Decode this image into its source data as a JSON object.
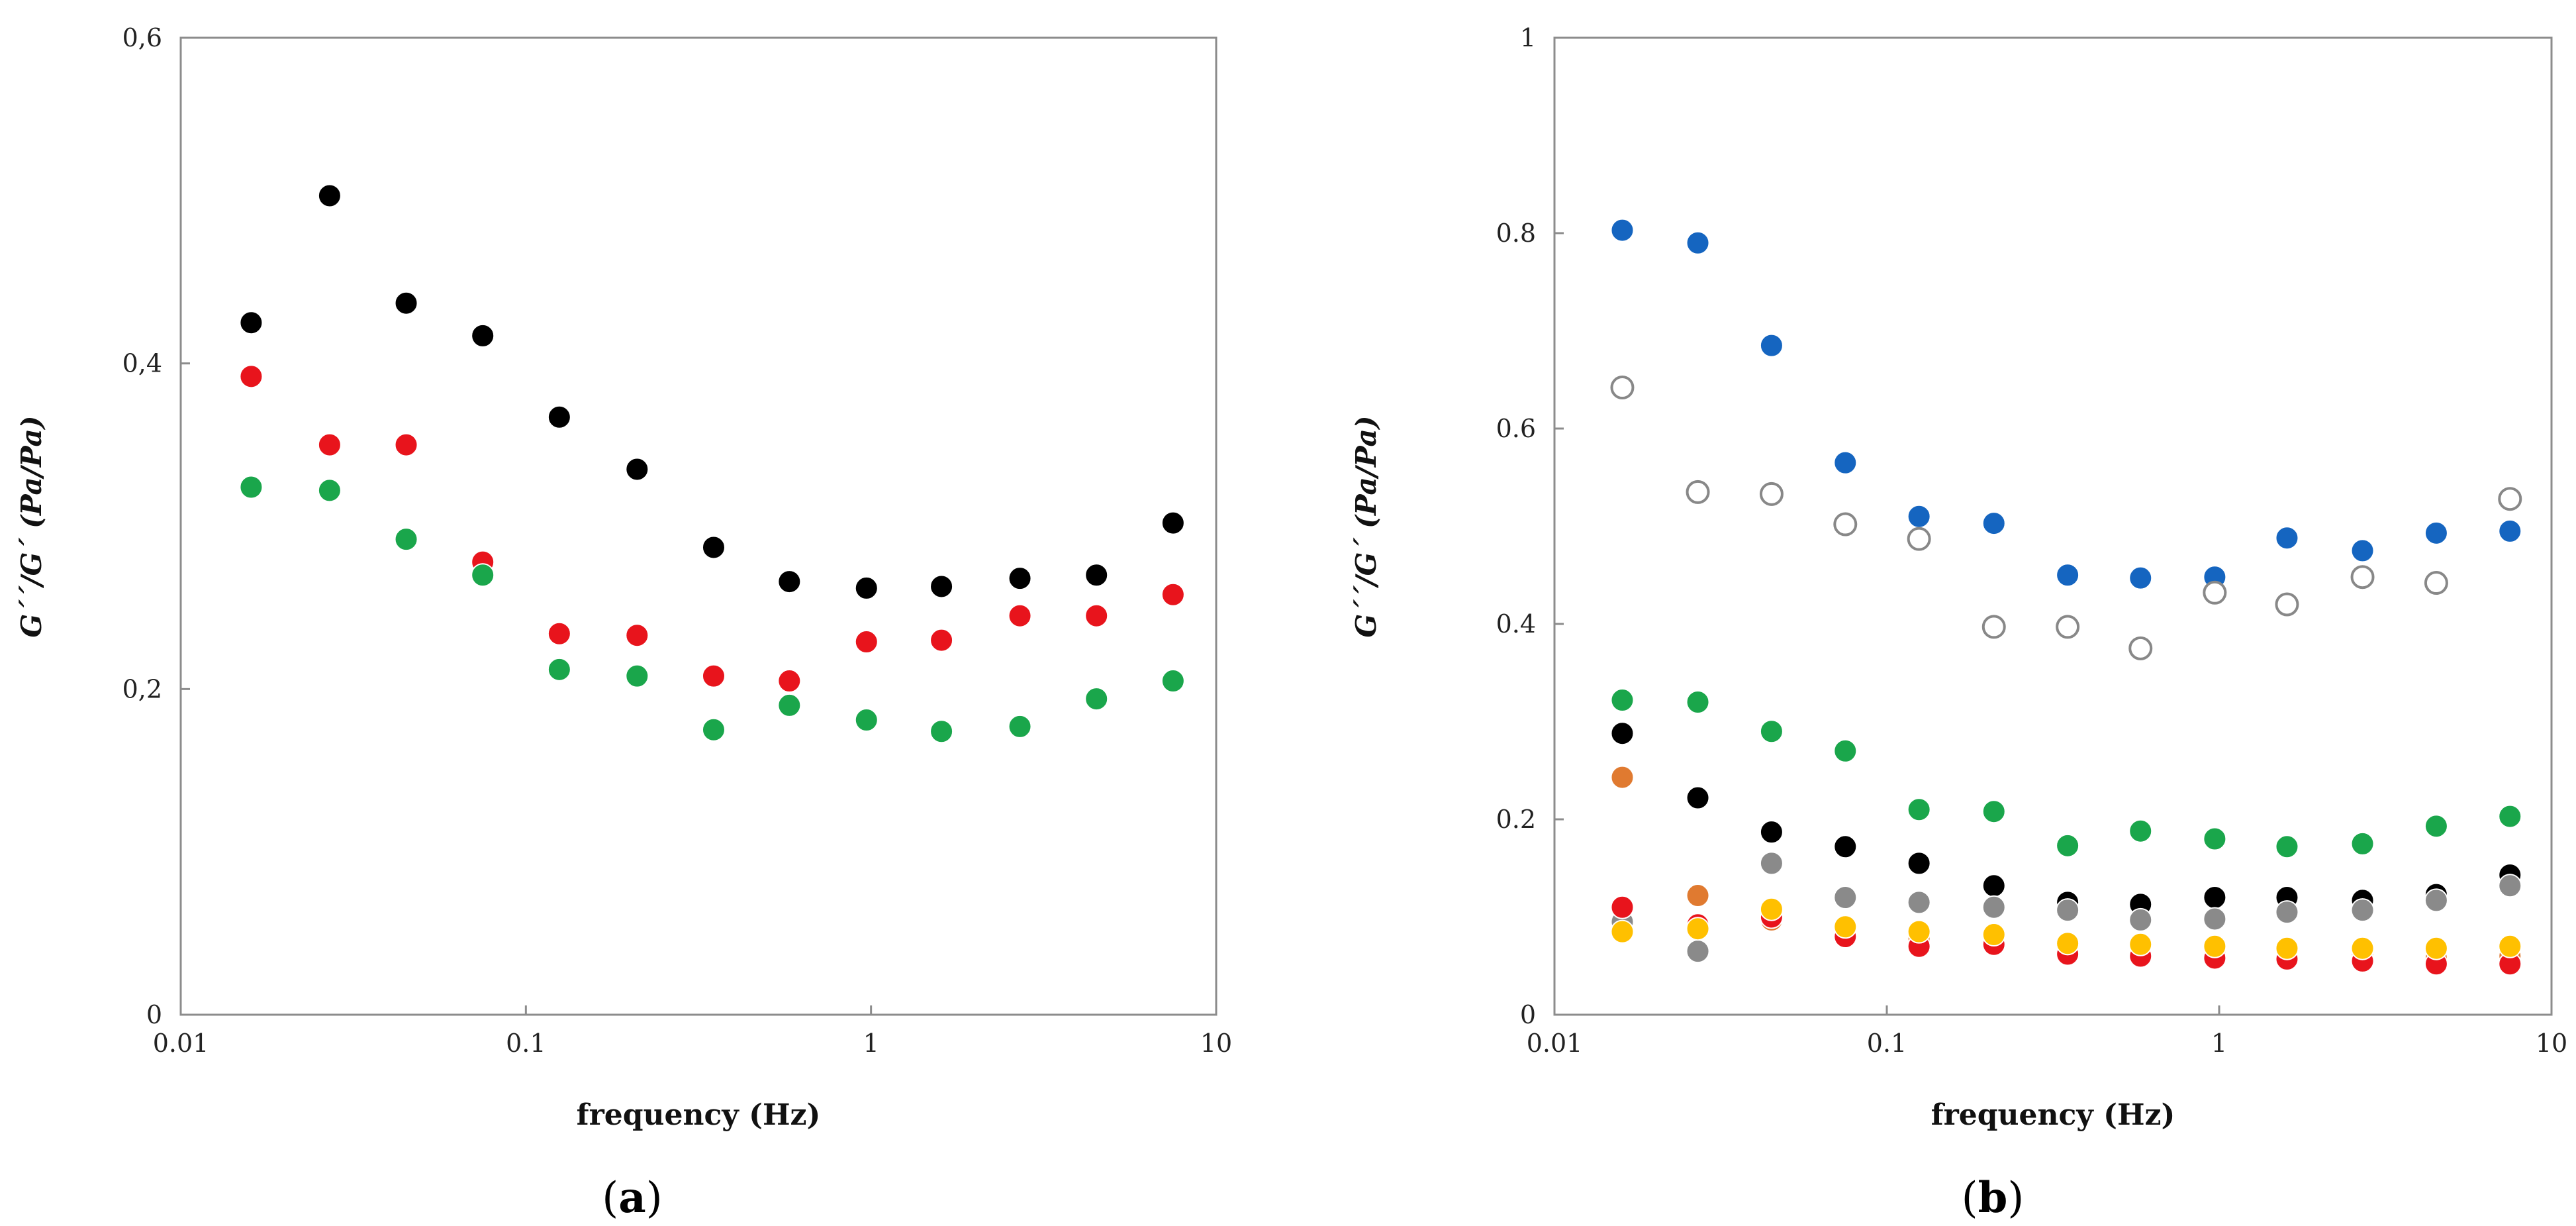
{
  "chart_data": [
    {
      "type": "scatter",
      "panel": "a",
      "panel_label": {
        "open": "(",
        "letter": "a",
        "close": ")"
      },
      "xlabel": "frequency (Hz)",
      "ylabel": "G´´/G´ (Pa/Pa)",
      "xscale": "log",
      "xlim": [
        0.01,
        10
      ],
      "ylim": [
        0,
        0.6
      ],
      "xticks": [
        0.01,
        0.1,
        1,
        10
      ],
      "xtick_labels": [
        "0.01",
        "0.1",
        "1",
        "10"
      ],
      "yticks": [
        0,
        0.2,
        0.4,
        0.6
      ],
      "ytick_labels": [
        "0",
        "0,2",
        "0,4",
        "0,6"
      ],
      "x": [
        0.016,
        0.027,
        0.045,
        0.075,
        0.125,
        0.21,
        0.35,
        0.58,
        0.97,
        1.6,
        2.7,
        4.5,
        7.5
      ],
      "series": [
        {
          "name": "black",
          "color": "#000000",
          "filled": true,
          "values": [
            0.425,
            0.503,
            0.437,
            0.417,
            0.367,
            0.335,
            0.287,
            0.266,
            0.262,
            0.263,
            0.268,
            0.27,
            0.302
          ]
        },
        {
          "name": "red",
          "color": "#e8141c",
          "filled": true,
          "values": [
            0.392,
            0.35,
            0.35,
            0.278,
            0.234,
            0.233,
            0.208,
            0.205,
            0.229,
            0.23,
            0.245,
            0.245,
            0.258
          ]
        },
        {
          "name": "green",
          "color": "#1aa64b",
          "filled": true,
          "values": [
            0.324,
            0.322,
            0.292,
            0.27,
            0.212,
            0.208,
            0.175,
            0.19,
            0.181,
            0.174,
            0.177,
            0.194,
            0.205
          ]
        }
      ]
    },
    {
      "type": "scatter",
      "panel": "b",
      "panel_label": {
        "open": "(",
        "letter": "b",
        "close": ")"
      },
      "xlabel": "frequency (Hz)",
      "ylabel": "G´´/G´ (Pa/Pa)",
      "xscale": "log",
      "xlim": [
        0.01,
        10
      ],
      "ylim": [
        0,
        1
      ],
      "xticks": [
        0.01,
        0.1,
        1,
        10
      ],
      "xtick_labels": [
        "0.01",
        "0.1",
        "1",
        "10"
      ],
      "yticks": [
        0,
        0.2,
        0.4,
        0.6,
        0.8,
        1
      ],
      "ytick_labels": [
        "0",
        "0.2",
        "0.4",
        "0.6",
        "0.8",
        "1"
      ],
      "x": [
        0.016,
        0.027,
        0.045,
        0.075,
        0.125,
        0.21,
        0.35,
        0.58,
        0.97,
        1.6,
        2.7,
        4.5,
        7.5
      ],
      "series": [
        {
          "name": "blue",
          "color": "#1565c0",
          "filled": true,
          "values": [
            0.803,
            0.79,
            0.685,
            0.565,
            0.51,
            0.503,
            0.45,
            0.447,
            0.448,
            0.488,
            0.475,
            0.493,
            0.495
          ]
        },
        {
          "name": "open",
          "color": "#888888",
          "filled": false,
          "values": [
            0.642,
            0.535,
            0.533,
            0.502,
            0.487,
            0.397,
            0.397,
            0.375,
            0.432,
            0.42,
            0.448,
            0.442,
            0.528
          ]
        },
        {
          "name": "green",
          "color": "#1aa64b",
          "filled": true,
          "values": [
            0.322,
            0.32,
            0.29,
            0.27,
            0.21,
            0.208,
            0.173,
            0.188,
            0.18,
            0.172,
            0.175,
            0.193,
            0.203
          ]
        },
        {
          "name": "black",
          "color": "#000000",
          "filled": true,
          "values": [
            0.288,
            0.222,
            0.187,
            0.172,
            0.155,
            0.132,
            0.115,
            0.113,
            0.12,
            0.12,
            0.117,
            0.123,
            0.143
          ]
        },
        {
          "name": "grey",
          "color": "#8a8a8a",
          "filled": true,
          "values": [
            0.095,
            0.065,
            0.155,
            0.12,
            0.115,
            0.11,
            0.107,
            0.097,
            0.098,
            0.105,
            0.107,
            0.117,
            0.132
          ]
        },
        {
          "name": "orange",
          "color": "#e07a30",
          "filled": true,
          "values": [
            0.243,
            0.122,
            0.097,
            0.085,
            0.078,
            0.075,
            0.065,
            0.063,
            0.063,
            0.062,
            0.06,
            0.058,
            0.06
          ]
        },
        {
          "name": "red",
          "color": "#e8141c",
          "filled": true,
          "values": [
            0.11,
            0.092,
            0.1,
            0.08,
            0.07,
            0.072,
            0.062,
            0.06,
            0.058,
            0.057,
            0.055,
            0.052,
            0.052
          ]
        },
        {
          "name": "yellow",
          "color": "#ffc000",
          "filled": true,
          "values": [
            0.085,
            0.088,
            0.108,
            0.09,
            0.085,
            0.082,
            0.073,
            0.072,
            0.07,
            0.068,
            0.068,
            0.068,
            0.07
          ]
        }
      ]
    }
  ]
}
